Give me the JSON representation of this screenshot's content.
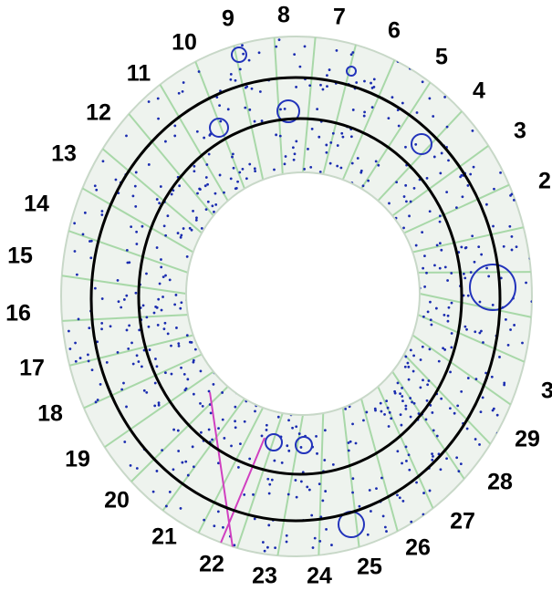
{
  "sector_labels": [
    "2",
    "3",
    "4",
    "5",
    "6",
    "7",
    "8",
    "9",
    "10",
    "11",
    "12",
    "13",
    "14",
    "15",
    "16",
    "17",
    "18",
    "19",
    "20",
    "21",
    "22",
    "23",
    "24",
    "25",
    "26",
    "27",
    "28",
    "29",
    "3"
  ]
}
